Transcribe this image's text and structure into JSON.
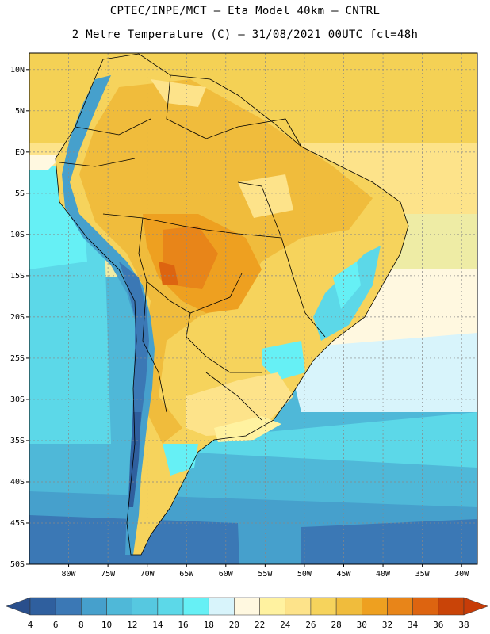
{
  "header": {
    "line1": "CPTEC/INPE/MCT –  Eta Model 40km – CNTRL",
    "line2": "2 Metre Temperature (C) – 31/08/2021 00UTC fct=48h"
  },
  "map": {
    "lat_labels": [
      "10N",
      "5N",
      "EQ",
      "5S",
      "10S",
      "15S",
      "20S",
      "25S",
      "30S",
      "35S",
      "40S",
      "45S",
      "50S"
    ],
    "lon_labels": [
      "80W",
      "75W",
      "70W",
      "65W",
      "60W",
      "55W",
      "50W",
      "45W",
      "40W",
      "35W",
      "30W"
    ],
    "lon_range": [
      -85,
      -28
    ],
    "lat_range": [
      -50,
      12
    ]
  },
  "colorbar": {
    "labels": [
      "4",
      "6",
      "8",
      "10",
      "12",
      "14",
      "16",
      "18",
      "20",
      "22",
      "24",
      "26",
      "28",
      "30",
      "32",
      "34",
      "36",
      "38"
    ],
    "colors": [
      "#2f5f9e",
      "#3b78b5",
      "#46a0cc",
      "#4fb8d8",
      "#56c8e0",
      "#5cd8e8",
      "#66f0f5",
      "#d8f4fb",
      "#fff8e0",
      "#fff2a0",
      "#fde38a",
      "#f6d35c",
      "#f0bc3c",
      "#eea020",
      "#e88519",
      "#dd6410",
      "#c94408"
    ],
    "end_colors": [
      "#2a4f8c",
      "#c73c08"
    ]
  }
}
